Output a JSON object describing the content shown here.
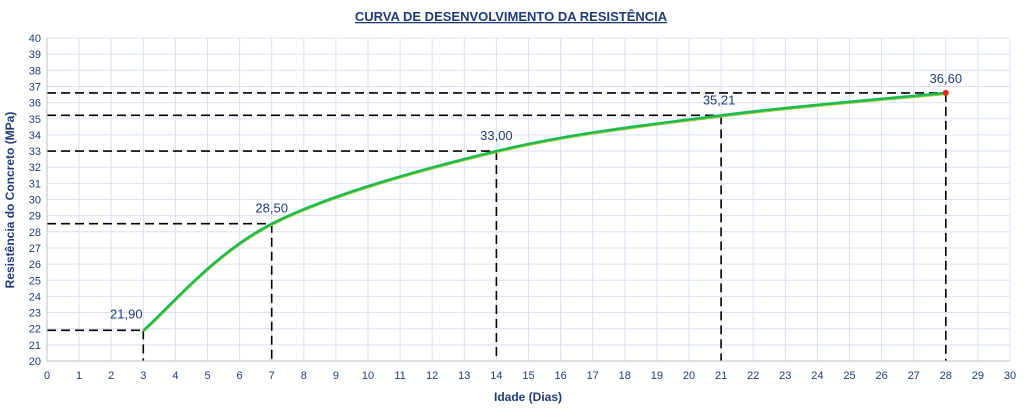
{
  "chart_data": {
    "type": "line",
    "title": "CURVA DE DESENVOLVIMENTO DA RESISTÊNCIA",
    "xlabel": "Idade (Dias)",
    "ylabel": "Resistência do Concreto (MPa)",
    "xlim": [
      0,
      30
    ],
    "ylim": [
      20,
      40
    ],
    "x_ticks": [
      0,
      1,
      2,
      3,
      4,
      5,
      6,
      7,
      8,
      9,
      10,
      11,
      12,
      13,
      14,
      15,
      16,
      17,
      18,
      19,
      20,
      21,
      22,
      23,
      24,
      25,
      26,
      27,
      28,
      29,
      30
    ],
    "y_ticks": [
      20,
      21,
      22,
      23,
      24,
      25,
      26,
      27,
      28,
      29,
      30,
      31,
      32,
      33,
      34,
      35,
      36,
      37,
      38,
      39,
      40
    ],
    "grid": true,
    "legend": "none",
    "series": [
      {
        "x": [
          3,
          7,
          14,
          21,
          28
        ],
        "y": [
          21.9,
          28.5,
          33.0,
          35.21,
          36.6
        ],
        "color": "#1db954",
        "secondary_color": "#9acd32",
        "end_marker_color": "#e8231c"
      }
    ],
    "point_labels": [
      "21,90",
      "28,50",
      "33,00",
      "35,21",
      "36,60"
    ],
    "guide_lines": "dashed black from each point to both axes",
    "colors": {
      "title": "#1f3b78",
      "text": "#1f3b78",
      "grid": "#d9e1f2",
      "guide": "#000000"
    }
  }
}
